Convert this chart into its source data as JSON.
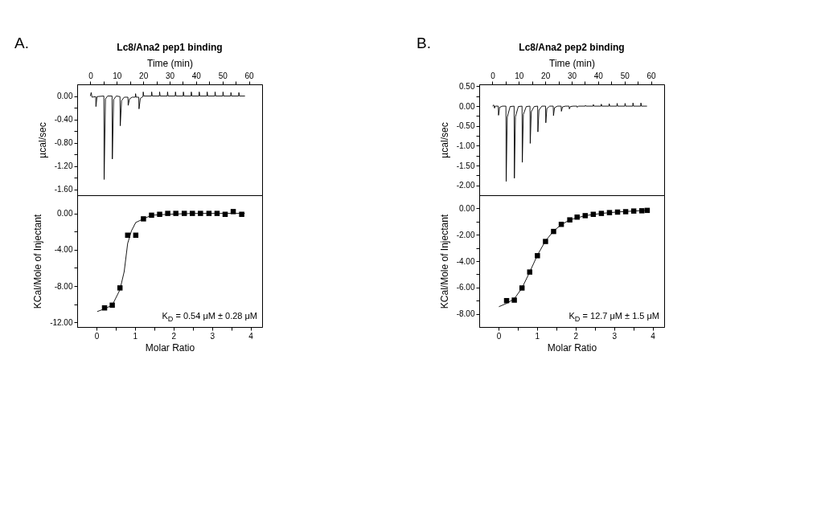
{
  "chart_data": [
    {
      "type": "line",
      "title": "Lc8/Ana2 pep1 binding",
      "xlabel": "Time (min)",
      "ylabel": "µcal/sec",
      "annotations": [
        "A."
      ],
      "xlim": [
        -5,
        65
      ],
      "xticks": [
        0,
        {
          "value": 5,
          "label": null
        },
        10,
        {
          "value": 15,
          "label": null
        },
        20,
        {
          "value": 25,
          "label": null
        },
        30,
        {
          "value": 35,
          "label": null
        },
        40,
        {
          "value": 45,
          "label": null
        },
        50,
        {
          "value": 55,
          "label": null
        },
        60
      ],
      "ylim": [
        -1.7,
        0.2
      ],
      "yticks": [
        {
          "value": 0,
          "label": "0.00"
        },
        {
          "value": -0.2,
          "label": null
        },
        {
          "value": -0.4,
          "label": "-0.40"
        },
        {
          "value": -0.6,
          "label": null
        },
        {
          "value": -0.8,
          "label": "-0.80"
        },
        {
          "value": -1.0,
          "label": null
        },
        {
          "value": -1.2,
          "label": "-1.20"
        },
        {
          "value": -1.4,
          "label": null
        },
        {
          "value": -1.6,
          "label": "-1.60"
        }
      ],
      "grid": false,
      "line_style": "solid",
      "series": [
        {
          "color": "#000000",
          "x": [
            0,
            0.3,
            0.6,
            2.0,
            2.1,
            2.5,
            5.1,
            5.2,
            5.7,
            6.5,
            8.2,
            8.3,
            8.8,
            9.8,
            11.2,
            11.3,
            11.8,
            12.8,
            14.2,
            14.3,
            14.8,
            15.8,
            17.0,
            17.1,
            17.3,
            18.3,
            18.4,
            18.9,
            19.9,
            20.0,
            20.2,
            23.1,
            23.2,
            23.4,
            26.1,
            26.2,
            26.4,
            29.1,
            29.2,
            29.4,
            32.1,
            32.2,
            32.4,
            35.1,
            35.2,
            35.4,
            38.1,
            38.2,
            38.4,
            41.1,
            41.2,
            41.4,
            44.1,
            44.2,
            44.4,
            47.1,
            47.2,
            47.4,
            50.1,
            50.2,
            50.4,
            53.1,
            53.2,
            53.4,
            56.1,
            56.2,
            56.4,
            58.5
          ],
          "values": [
            0,
            0.06,
            -0.02,
            -0.01,
            -0.18,
            -0.01,
            0,
            -1.43,
            -0.05,
            0,
            0,
            -1.08,
            -0.06,
            0,
            -0.01,
            -0.51,
            -0.08,
            -0.02,
            -0.02,
            -0.16,
            -0.05,
            -0.02,
            -0.02,
            0.04,
            -0.02,
            -0.02,
            -0.22,
            -0.04,
            -0.01,
            0.07,
            0,
            0,
            0.07,
            0,
            0,
            0.07,
            0,
            0,
            0.07,
            0,
            0,
            0.07,
            0,
            0,
            0.07,
            0,
            0,
            0.07,
            0,
            0,
            0.07,
            0,
            0,
            0.07,
            0,
            0,
            0.07,
            0,
            0,
            0.07,
            0,
            0,
            0.06,
            0,
            0,
            0.06,
            0,
            0
          ]
        }
      ]
    },
    {
      "type": "scatter",
      "xlabel": "Molar Ratio",
      "ylabel": "KCal/Mole of Injectant",
      "annotations": [
        "K$_{D}$ = 0.54 μM ± 0.28 μM"
      ],
      "xlim": [
        -0.5,
        4.3
      ],
      "xticks": [
        0,
        {
          "value": 0.5,
          "label": null
        },
        1,
        {
          "value": 1.5,
          "label": null
        },
        2,
        {
          "value": 2.5,
          "label": null
        },
        3,
        {
          "value": 3.5,
          "label": null
        },
        4
      ],
      "ylim": [
        -12.5,
        2
      ],
      "yticks": [
        {
          "value": 0,
          "label": "0.00"
        },
        {
          "value": -2,
          "label": null
        },
        {
          "value": -4,
          "label": "-4.00"
        },
        {
          "value": -6,
          "label": null
        },
        {
          "value": -8,
          "label": "-8.00"
        },
        {
          "value": -10,
          "label": null
        },
        {
          "value": -12,
          "label": "-12.00"
        }
      ],
      "grid": false,
      "line_style": "solid",
      "series": [
        {
          "color": "#000000",
          "marker": "square",
          "x": [
            0.21,
            0.41,
            0.61,
            0.81,
            1.02,
            1.22,
            1.43,
            1.64,
            1.85,
            2.06,
            2.28,
            2.49,
            2.7,
            2.92,
            3.13,
            3.34,
            3.55,
            3.77
          ],
          "values": [
            -10.4,
            -10.1,
            -8.2,
            -2.4,
            -2.4,
            -0.6,
            -0.2,
            -0.1,
            0,
            0,
            0,
            0,
            0,
            0,
            0,
            -0.1,
            0.2,
            -0.1
          ]
        },
        {
          "type": "line",
          "marker": "none",
          "color": "#000000",
          "x": [
            0.02,
            0.21,
            0.41,
            0.61,
            0.72,
            0.81,
            0.91,
            1.02,
            1.22,
            1.43,
            1.85,
            2.5,
            3.2,
            3.85
          ],
          "values": [
            -10.8,
            -10.5,
            -10.1,
            -8.4,
            -6.4,
            -3.3,
            -1.9,
            -1.0,
            -0.6,
            -0.2,
            -0.1,
            0,
            0,
            0
          ]
        }
      ]
    },
    {
      "type": "line",
      "title": "Lc8/Ana2 pep2 binding",
      "xlabel": "Time (min)",
      "ylabel": "µcal/sec",
      "annotations": [
        "B."
      ],
      "xlim": [
        -5,
        65
      ],
      "xticks": [
        0,
        {
          "value": 5,
          "label": null
        },
        10,
        {
          "value": 15,
          "label": null
        },
        20,
        {
          "value": 25,
          "label": null
        },
        30,
        {
          "value": 35,
          "label": null
        },
        40,
        {
          "value": 45,
          "label": null
        },
        50,
        {
          "value": 55,
          "label": null
        },
        60
      ],
      "ylim": [
        -2.25,
        0.55
      ],
      "yticks": [
        {
          "value": 0.5,
          "label": "0.50"
        },
        {
          "value": 0.25,
          "label": null
        },
        {
          "value": 0,
          "label": "0.00"
        },
        {
          "value": -0.25,
          "label": null
        },
        {
          "value": -0.5,
          "label": "-0.50"
        },
        {
          "value": -0.75,
          "label": null
        },
        {
          "value": -1.0,
          "label": "-1.00"
        },
        {
          "value": -1.25,
          "label": null
        },
        {
          "value": -1.5,
          "label": "-1.50"
        },
        {
          "value": -1.75,
          "label": null
        },
        {
          "value": -2.0,
          "label": "-2.00"
        }
      ],
      "grid": false,
      "line_style": "solid",
      "series": [
        {
          "color": "#000000",
          "x": [
            0,
            0.5,
            0.8,
            1.0,
            2.2,
            2.3,
            2.7,
            3.8,
            5.1,
            5.2,
            5.6,
            6.7,
            8.2,
            8.3,
            8.7,
            9.8,
            11.2,
            11.3,
            11.7,
            12.8,
            14.2,
            14.3,
            14.7,
            15.8,
            17.1,
            17.2,
            17.6,
            18.7,
            20.1,
            20.2,
            20.6,
            21.7,
            23.0,
            23.1,
            23.5,
            24.6,
            26.0,
            26.1,
            26.5,
            27.6,
            29.0,
            29.1,
            29.5,
            30.6,
            32.0,
            32.1,
            32.5,
            35.1,
            35.2,
            35.4,
            38.1,
            38.2,
            38.4,
            41.1,
            41.2,
            41.4,
            44.1,
            44.2,
            44.4,
            47.1,
            47.2,
            47.4,
            50.1,
            50.2,
            50.4,
            53.1,
            53.2,
            53.4,
            56.1,
            56.2,
            56.4,
            58.5
          ],
          "values": [
            0,
            0.03,
            -0.05,
            0,
            0,
            -0.23,
            -0.03,
            0,
            0,
            -1.9,
            -0.28,
            -0.01,
            0,
            -1.82,
            -0.27,
            -0.01,
            0,
            -1.42,
            -0.21,
            -0.01,
            0,
            -0.94,
            -0.14,
            -0.01,
            0,
            -0.65,
            -0.1,
            0,
            0,
            -0.42,
            -0.06,
            0,
            0,
            -0.24,
            -0.04,
            0,
            0,
            -0.13,
            -0.02,
            0,
            0,
            -0.07,
            -0.01,
            0,
            0,
            -0.03,
            0,
            0,
            0.02,
            0,
            0,
            0.04,
            0,
            0,
            0.05,
            0,
            0,
            0.06,
            0,
            0,
            0.07,
            0,
            0,
            0.07,
            0,
            0,
            0.08,
            0,
            0,
            0.08,
            0,
            0
          ]
        }
      ]
    },
    {
      "type": "scatter",
      "xlabel": "Molar Ratio",
      "ylabel": "KCal/Mole of Injectant",
      "annotations": [
        "K$_{D}$ = 12.7 μM ± 1.5 μM"
      ],
      "xlim": [
        -0.5,
        4.3
      ],
      "xticks": [
        0,
        {
          "value": 0.5,
          "label": null
        },
        1,
        {
          "value": 1.5,
          "label": null
        },
        2,
        {
          "value": 2.5,
          "label": null
        },
        3,
        {
          "value": 3.5,
          "label": null
        },
        4
      ],
      "ylim": [
        -9,
        1
      ],
      "yticks": [
        {
          "value": 0,
          "label": "0.00"
        },
        {
          "value": -1,
          "label": null
        },
        {
          "value": -2,
          "label": "-2.00"
        },
        {
          "value": -3,
          "label": null
        },
        {
          "value": -4,
          "label": "-4.00"
        },
        {
          "value": -5,
          "label": null
        },
        {
          "value": -6,
          "label": "-6.00"
        },
        {
          "value": -7,
          "label": null
        },
        {
          "value": -8,
          "label": "-8.00"
        }
      ],
      "grid": false,
      "line_style": "solid",
      "series": [
        {
          "color": "#000000",
          "marker": "square",
          "x": [
            0.21,
            0.41,
            0.61,
            0.81,
            1.01,
            1.22,
            1.43,
            1.63,
            1.85,
            2.04,
            2.25,
            2.46,
            2.67,
            2.88,
            3.09,
            3.3,
            3.51,
            3.72,
            3.86
          ],
          "values": [
            -7.0,
            -6.96,
            -6.04,
            -4.83,
            -3.59,
            -2.51,
            -1.75,
            -1.21,
            -0.87,
            -0.66,
            -0.55,
            -0.45,
            -0.38,
            -0.32,
            -0.28,
            -0.25,
            -0.2,
            -0.18,
            -0.15
          ]
        },
        {
          "type": "line",
          "marker": "none",
          "color": "#000000",
          "x": [
            0.01,
            0.21,
            0.41,
            0.61,
            0.81,
            1.01,
            1.22,
            1.43,
            1.63,
            1.85,
            2.25,
            2.67,
            3.09,
            3.51,
            3.86
          ],
          "values": [
            -7.46,
            -7.21,
            -6.86,
            -6.04,
            -4.83,
            -3.55,
            -2.46,
            -1.72,
            -1.23,
            -0.87,
            -0.55,
            -0.38,
            -0.27,
            -0.2,
            -0.15
          ]
        }
      ]
    }
  ]
}
